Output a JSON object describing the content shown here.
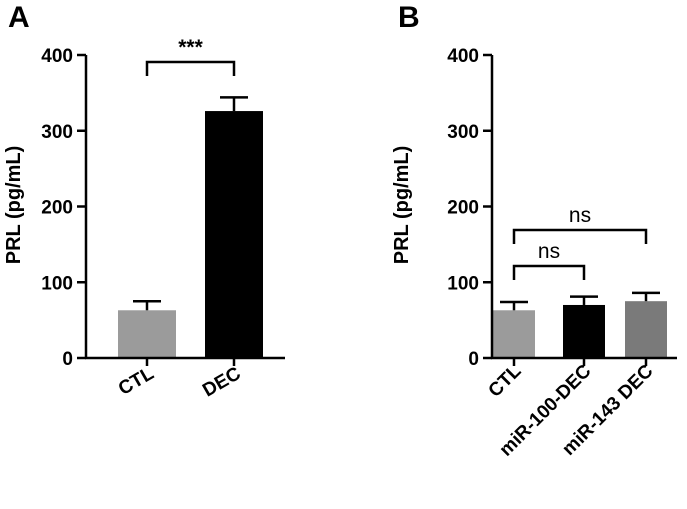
{
  "chart_data": [
    {
      "type": "bar",
      "panel": "A",
      "categories": [
        "CTL",
        "DEC"
      ],
      "values": [
        63,
        326
      ],
      "errors": [
        12,
        18
      ],
      "colors": [
        "#9b9b9b",
        "#000000"
      ],
      "ylabel": "PRL (pg/mL)",
      "ylim": [
        0,
        400
      ],
      "yticks": [
        "0",
        "100",
        "200",
        "300",
        "400"
      ],
      "grid": false,
      "comparisons": [
        {
          "from": 0,
          "to": 1,
          "label": "***"
        }
      ]
    },
    {
      "type": "bar",
      "panel": "B",
      "categories": [
        "CTL",
        "miR-100-DEC",
        "miR-143 DEC"
      ],
      "values": [
        63,
        70,
        75
      ],
      "errors": [
        11,
        11,
        11
      ],
      "colors": [
        "#9b9b9b",
        "#000000",
        "#7a7a7a"
      ],
      "ylabel": "PRL (pg/mL)",
      "ylim": [
        0,
        400
      ],
      "yticks": [
        "0",
        "100",
        "200",
        "300",
        "400"
      ],
      "grid": false,
      "comparisons": [
        {
          "from": 0,
          "to": 1,
          "label": "ns"
        },
        {
          "from": 0,
          "to": 2,
          "label": "ns"
        }
      ]
    }
  ]
}
